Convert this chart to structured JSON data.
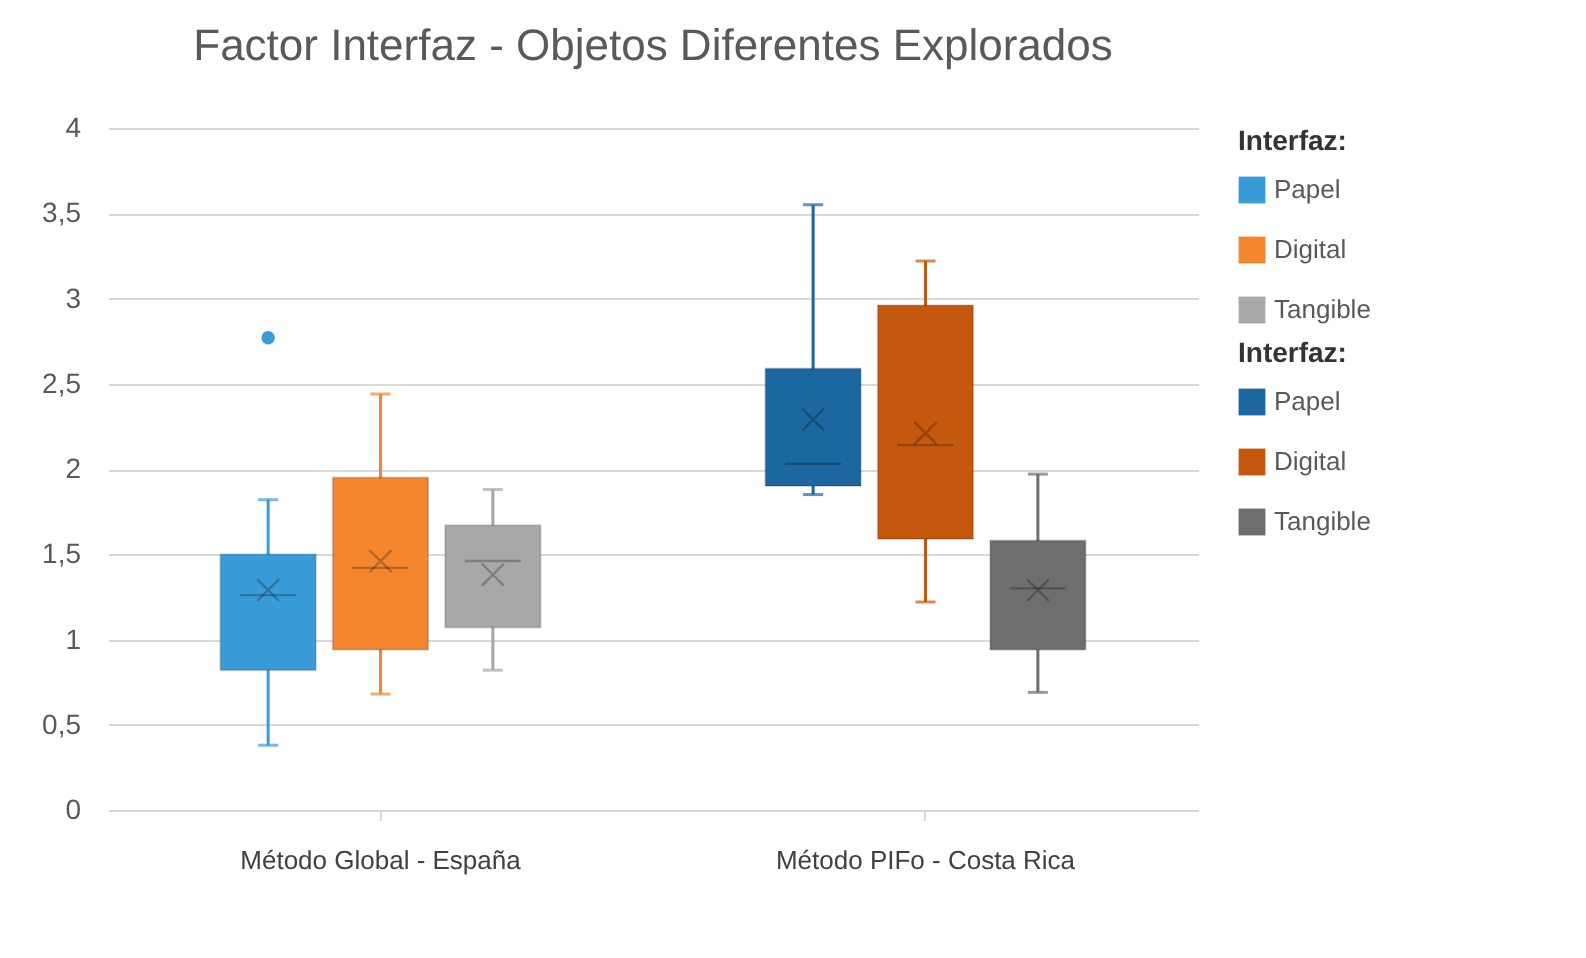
{
  "chart_data": {
    "type": "box",
    "title": "Factor Interfaz - Objetos Diferentes Explorados",
    "categories": [
      "Método Global - España",
      "Método PIFo - Costa Rica"
    ],
    "legend_title": "Interfaz:",
    "legend": "right",
    "grid": "y",
    "ylim": [
      0,
      4
    ],
    "yticks": [
      0,
      {
        "value": 0.5,
        "label": "0,5"
      },
      1,
      {
        "value": 1.5,
        "label": "1,5"
      },
      2,
      {
        "value": 2.5,
        "label": "2,5"
      },
      3,
      {
        "value": 3.5,
        "label": "3,5"
      },
      4
    ],
    "series": [
      {
        "name": "Papel",
        "color": "#3a9bd9",
        "boxes": [
          {
            "low": 0.38,
            "q1": 0.82,
            "median": 1.26,
            "q3": 1.5,
            "high": 1.82,
            "mean": 1.29,
            "outliers": [
              2.77
            ]
          },
          null
        ]
      },
      {
        "name": "Digital",
        "color": "#f4862f",
        "boxes": [
          {
            "low": 0.68,
            "q1": 0.94,
            "median": 1.42,
            "q3": 1.95,
            "high": 2.44,
            "mean": 1.46
          },
          null
        ]
      },
      {
        "name": "Tangible",
        "color": "#a8a8a8",
        "boxes": [
          {
            "low": 0.82,
            "q1": 1.07,
            "median": 1.46,
            "q3": 1.67,
            "high": 1.88,
            "mean": 1.38
          },
          null
        ]
      },
      {
        "name": "Papel",
        "color": "#1c67a0",
        "boxes": [
          null,
          {
            "low": 1.85,
            "q1": 1.9,
            "median": 2.03,
            "q3": 2.59,
            "high": 3.55,
            "mean": 2.29
          }
        ]
      },
      {
        "name": "Digital",
        "color": "#c5580f",
        "boxes": [
          null,
          {
            "low": 1.22,
            "q1": 1.59,
            "median": 2.14,
            "q3": 2.96,
            "high": 3.22,
            "mean": 2.21
          }
        ]
      },
      {
        "name": "Tangible",
        "color": "#6e6e6e",
        "boxes": [
          null,
          {
            "low": 0.69,
            "q1": 0.94,
            "median": 1.3,
            "q3": 1.58,
            "high": 1.97,
            "mean": 1.29
          }
        ]
      }
    ]
  }
}
